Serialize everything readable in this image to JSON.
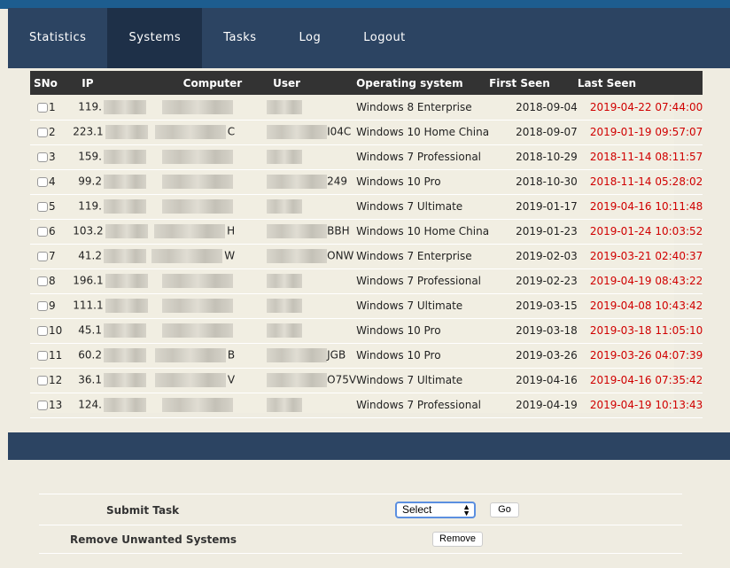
{
  "nav": {
    "items": [
      {
        "label": "Statistics"
      },
      {
        "label": "Systems",
        "active": true
      },
      {
        "label": "Tasks"
      },
      {
        "label": "Log"
      },
      {
        "label": "Logout"
      }
    ]
  },
  "table": {
    "headers": [
      "SNo",
      "IP",
      "Computer",
      "User",
      "Operating system",
      "First Seen",
      "Last Seen"
    ],
    "rows": [
      {
        "sno": "1",
        "ip": "119.",
        "computer": "",
        "user": "",
        "os": "Windows 8 Enterprise",
        "first": "2018-09-04",
        "last": "2019-04-22 07:44:00"
      },
      {
        "sno": "2",
        "ip": "223.1",
        "computer": "C",
        "user": "I04C",
        "os": "Windows 10 Home China",
        "first": "2018-09-07",
        "last": "2019-01-19 09:57:07"
      },
      {
        "sno": "3",
        "ip": "159.",
        "computer": "",
        "user": "",
        "os": "Windows 7 Professional",
        "first": "2018-10-29",
        "last": "2018-11-14 08:11:57"
      },
      {
        "sno": "4",
        "ip": "99.2",
        "computer": "",
        "user": "249",
        "os": "Windows 10 Pro",
        "first": "2018-10-30",
        "last": "2018-11-14 05:28:02"
      },
      {
        "sno": "5",
        "ip": "119.",
        "computer": "",
        "user": "",
        "os": "Windows 7 Ultimate",
        "first": "2019-01-17",
        "last": "2019-04-16 10:11:48"
      },
      {
        "sno": "6",
        "ip": "103.2",
        "computer": "H",
        "user": "BBH",
        "os": "Windows 10 Home China",
        "first": "2019-01-23",
        "last": "2019-01-24 10:03:52"
      },
      {
        "sno": "7",
        "ip": "41.2",
        "computer": "W",
        "user": "ONW",
        "os": "Windows 7 Enterprise",
        "first": "2019-02-03",
        "last": "2019-03-21 02:40:37"
      },
      {
        "sno": "8",
        "ip": "196.1",
        "computer": "",
        "user": "",
        "os": "Windows 7 Professional",
        "first": "2019-02-23",
        "last": "2019-04-19 08:43:22"
      },
      {
        "sno": "9",
        "ip": "111.1",
        "computer": "",
        "user": "",
        "os": "Windows 7 Ultimate",
        "first": "2019-03-15",
        "last": "2019-04-08 10:43:42"
      },
      {
        "sno": "10",
        "ip": "45.1",
        "computer": "",
        "user": "",
        "os": "Windows 10 Pro",
        "first": "2019-03-18",
        "last": "2019-03-18 11:05:10"
      },
      {
        "sno": "11",
        "ip": "60.2",
        "computer": "B",
        "user": "JGB",
        "os": "Windows 10 Pro",
        "first": "2019-03-26",
        "last": "2019-03-26 04:07:39"
      },
      {
        "sno": "12",
        "ip": "36.1",
        "computer": "V",
        "user": "O75V",
        "os": "Windows 7 Ultimate",
        "first": "2019-04-16",
        "last": "2019-04-16 07:35:42"
      },
      {
        "sno": "13",
        "ip": "124.",
        "computer": "",
        "user": "",
        "os": "Windows 7 Professional",
        "first": "2019-04-19",
        "last": "2019-04-19 10:13:43"
      }
    ]
  },
  "form": {
    "submit_label": "Submit Task",
    "select_value": "Select",
    "go_label": "Go",
    "remove_label": "Remove Unwanted Systems",
    "remove_button": "Remove"
  },
  "colors": {
    "nav": "#2c4462",
    "nav_active": "#1e3048",
    "header": "#333333",
    "last_seen": "#d00000"
  }
}
